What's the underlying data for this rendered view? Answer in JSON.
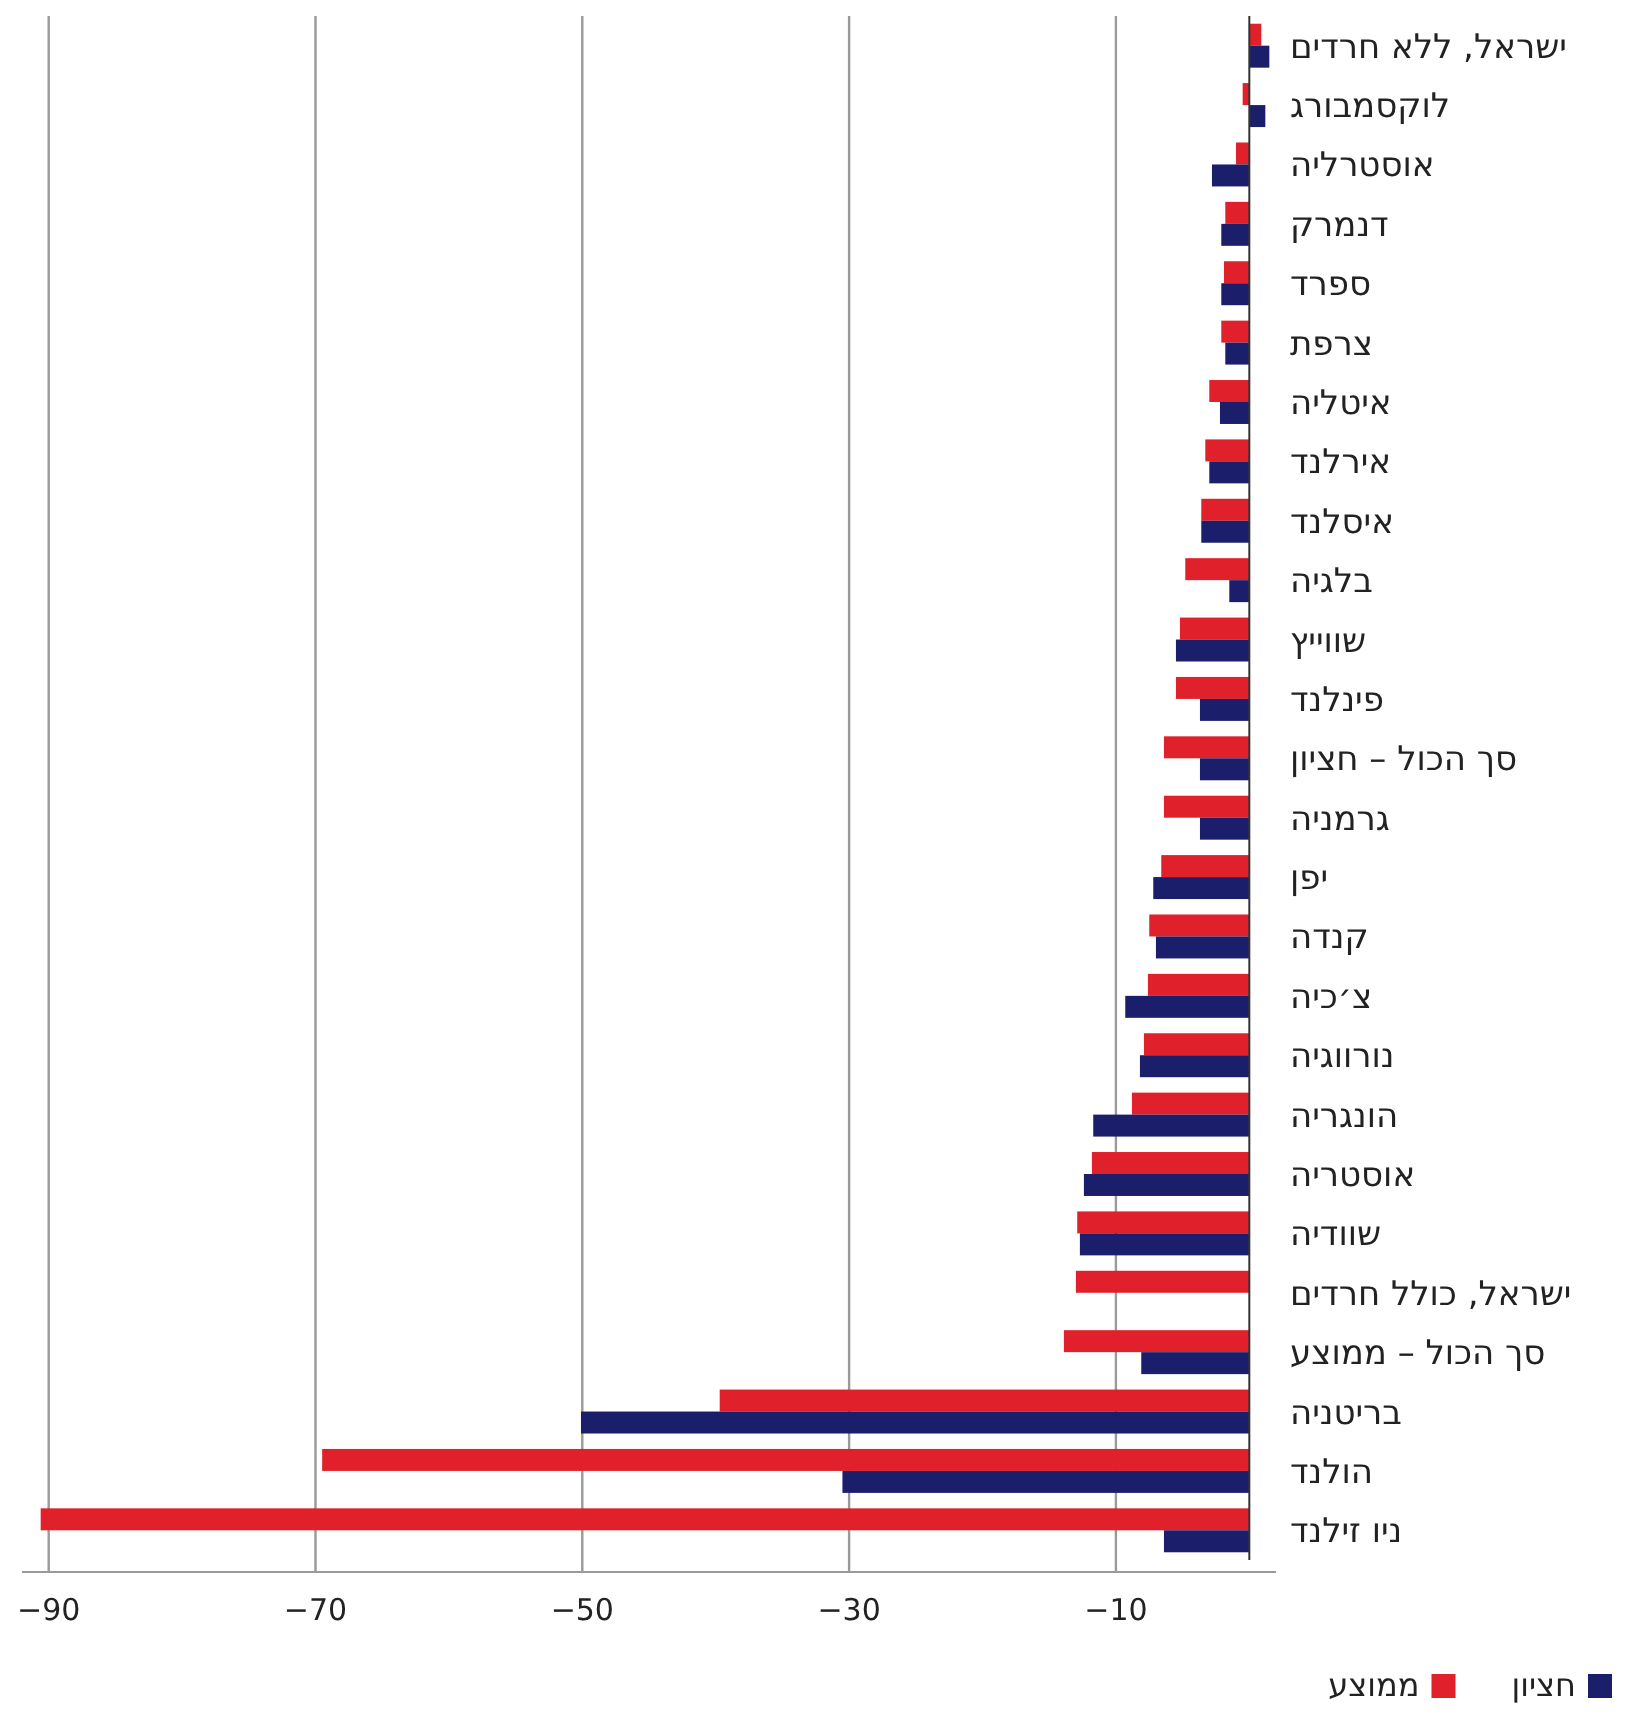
{
  "chart_data": {
    "type": "bar",
    "orientation": "horizontal",
    "categories": [
      "ישראל, ללא חרדים",
      "לוקסמבורג",
      "אוסטרליה",
      "דנמרק",
      "ספרד",
      "צרפת",
      "איטליה",
      "אירלנד",
      "איסלנד",
      "בלגיה",
      "שווייץ",
      "פינלנד",
      "סך הכול – חציון",
      "גרמניה",
      "יפן",
      "קנדה",
      "צ׳כיה",
      "נורווגיה",
      "הונגריה",
      "אוסטריה",
      "שוודיה",
      "ישראל, כולל חרדים",
      "סך הכול – ממוצע",
      "בריטניה",
      "הולנד",
      "ניו זילנד"
    ],
    "series": [
      {
        "name": "ממוצע",
        "color": "#e0202a",
        "values": [
          0.9,
          -0.5,
          -1.0,
          -1.8,
          -1.9,
          -2.1,
          -3.0,
          -3.3,
          -3.6,
          -4.8,
          -5.2,
          -5.5,
          -6.4,
          -6.4,
          -6.6,
          -7.5,
          -7.6,
          -7.9,
          -8.8,
          -11.8,
          -12.9,
          -13.0,
          -13.9,
          -39.7,
          -69.5,
          -90.6
        ]
      },
      {
        "name": "חציון",
        "color": "#1b1f6b",
        "values": [
          1.5,
          1.2,
          -2.8,
          -2.1,
          -2.1,
          -1.8,
          -2.2,
          -3.0,
          -3.6,
          -1.5,
          -5.5,
          -3.7,
          -3.7,
          -3.7,
          -7.2,
          -7.0,
          -9.3,
          -8.2,
          -11.7,
          -12.4,
          -12.7,
          0,
          -8.1,
          -50.1,
          -30.5,
          -6.4
        ]
      }
    ],
    "xlim": [
      -92,
      2
    ],
    "xticks": [
      -90,
      -70,
      -50,
      -30,
      -10
    ],
    "grid": "x",
    "legend": "bottom"
  }
}
